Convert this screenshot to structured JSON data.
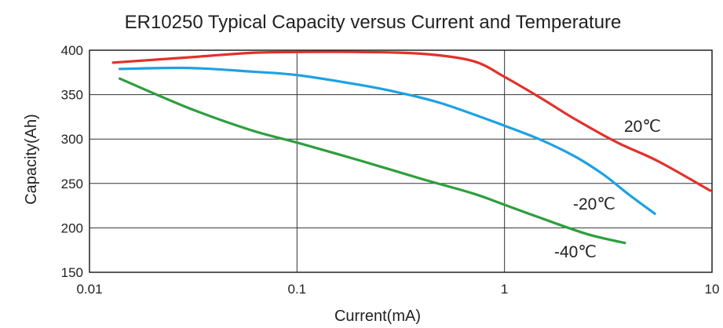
{
  "chart_data": {
    "type": "line",
    "title": "ER10250 Typical Capacity versus Current and Temperature",
    "xlabel": "Current(mA)",
    "ylabel": "Capacity(Ah)",
    "xscale": "log",
    "xlim": [
      0.01,
      10
    ],
    "ylim": [
      150,
      400
    ],
    "x_ticks": [
      "0.01",
      "0.1",
      "1",
      "10"
    ],
    "y_ticks": [
      "150",
      "200",
      "250",
      "300",
      "350",
      "400"
    ],
    "grid": true,
    "legend": "none",
    "series": [
      {
        "name": "20℃",
        "color": "#e2312b",
        "x": [
          0.013,
          0.03,
          0.06,
          0.1,
          0.2,
          0.4,
          0.7,
          1.0,
          1.5,
          2.2,
          3.5,
          5.5,
          9.8
        ],
        "y": [
          386,
          392,
          397,
          398,
          398,
          396,
          388,
          370,
          346,
          322,
          296,
          275,
          242
        ]
      },
      {
        "name": "-20℃",
        "color": "#1ea1e1",
        "x": [
          0.014,
          0.03,
          0.06,
          0.1,
          0.2,
          0.3,
          0.5,
          1.0,
          1.5,
          2.2,
          3.0,
          4.0,
          5.3
        ],
        "y": [
          379,
          380,
          376,
          372,
          361,
          353,
          340,
          315,
          299,
          280,
          260,
          237,
          216
        ]
      },
      {
        "name": "-40℃",
        "color": "#2e9e3e",
        "x": [
          0.014,
          0.03,
          0.06,
          0.1,
          0.2,
          0.4,
          0.7,
          1.0,
          1.5,
          2.5,
          3.8
        ],
        "y": [
          368,
          335,
          310,
          296,
          276,
          255,
          239,
          226,
          211,
          193,
          183
        ]
      }
    ]
  }
}
